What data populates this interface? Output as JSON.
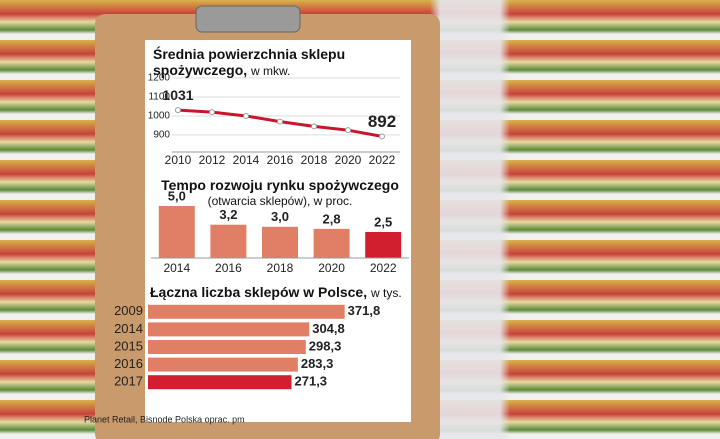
{
  "chart_data": [
    {
      "type": "line",
      "title": "Średnia powierzchnia sklepu spożywczego,",
      "subtitle": "w mkw.",
      "x": [
        2010,
        2012,
        2014,
        2016,
        2018,
        2020,
        2022
      ],
      "values": [
        1031,
        1020,
        1000,
        970,
        945,
        925,
        892
      ],
      "color": "#c8162c",
      "ylim": [
        810,
        1200
      ],
      "yticks": [
        900,
        1000,
        1100,
        1200
      ],
      "xlim": [
        2010,
        2022
      ],
      "grid": true
    },
    {
      "type": "bar",
      "title": "Tempo rozwoju rynku spożywczego",
      "subtitle": "(otwarcia sklepów), w proc.",
      "categories": [
        "2014",
        "2016",
        "2018",
        "2020",
        "2022"
      ],
      "values": [
        5.0,
        3.2,
        3.0,
        2.8,
        2.5
      ],
      "value_labels": [
        "5,0",
        "3,2",
        "3,0",
        "2,8",
        "2,5"
      ],
      "colors": [
        "#e07f66",
        "#e07f66",
        "#e07f66",
        "#e07f66",
        "#d21f30"
      ],
      "ylim": [
        0,
        5
      ]
    },
    {
      "type": "barh",
      "title": "Łączna liczba sklepów w Polsce,",
      "subtitle": "w tys.",
      "categories": [
        "2009",
        "2014",
        "2015",
        "2016",
        "2017"
      ],
      "values": [
        371.8,
        304.8,
        298.3,
        283.3,
        271.3
      ],
      "value_labels": [
        "371,8",
        "304,8",
        "298,3",
        "283,3",
        "271,3"
      ],
      "colors": [
        "#e07f66",
        "#e07f66",
        "#e07f66",
        "#e07f66",
        "#d21f30"
      ],
      "xlim": [
        0,
        380
      ]
    }
  ],
  "source": "Planet Retail, Bisnode Polska oprac. pm"
}
